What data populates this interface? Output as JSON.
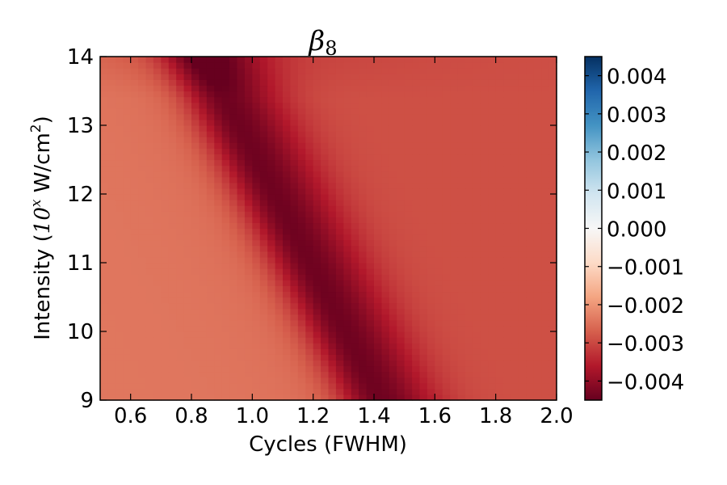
{
  "chart_data": {
    "type": "heatmap",
    "title": "β",
    "title_subscript": "8",
    "xlabel": "Cycles (FWHM)",
    "ylabel": {
      "prefix": "Intensity (",
      "base": "10",
      "exponent": "x",
      "unit": " W/cm",
      "unit_exponent": "2",
      "suffix": ")"
    },
    "xlim": [
      0.5,
      2.0
    ],
    "ylim": [
      9,
      14
    ],
    "xticks": [
      0.6,
      0.8,
      1.0,
      1.2,
      1.4,
      1.6,
      1.8,
      2.0
    ],
    "xtick_labels": [
      "0.6",
      "0.8",
      "1.0",
      "1.2",
      "1.4",
      "1.6",
      "1.8",
      "2.0"
    ],
    "yticks": [
      9,
      10,
      11,
      12,
      13,
      14
    ],
    "ytick_labels": [
      "9",
      "10",
      "11",
      "12",
      "13",
      "14"
    ],
    "colormap": "RdBu",
    "colorbar": {
      "vmin": -0.0045,
      "vmax": 0.0045,
      "ticks": [
        0.004,
        0.003,
        0.002,
        0.001,
        0.0,
        -0.001,
        -0.002,
        -0.003,
        -0.004
      ],
      "tick_labels": [
        "0.004",
        "0.003",
        "0.002",
        "0.001",
        "0.000",
        "−0.001",
        "−0.002",
        "−0.003",
        "−0.004"
      ],
      "placement": "right"
    },
    "grid": false,
    "grid_shape": {
      "nx": 60,
      "ny": 60
    },
    "valley": {
      "description": "minimum ridge runs diagonally from top-left to bottom-right",
      "cycles_at_ylim_top": 0.84,
      "cycles_at_ylim_bottom": 1.42,
      "min_value": -0.0044
    },
    "background_left_value": -0.0024,
    "background_right_value": -0.0029
  }
}
